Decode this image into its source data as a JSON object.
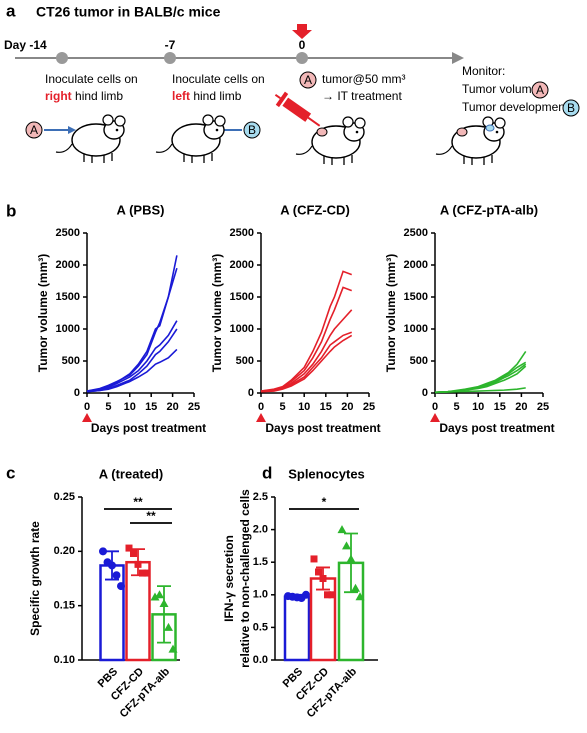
{
  "panel_labels": [
    "a",
    "b",
    "c",
    "d"
  ],
  "diagram": {
    "title": "CT26 tumor in BALB/c mice",
    "days": [
      "Day -14",
      "-7",
      "0"
    ],
    "step1": {
      "line1": "Inoculate cells on",
      "highlight": "right",
      "line2": "hind limb",
      "badge": "A"
    },
    "step2": {
      "line1": "Inoculate cells on",
      "highlight": "left",
      "line2": "hind limb",
      "badge": "B"
    },
    "step3": {
      "badge": "A",
      "line1": "tumor@50 mm³",
      "line2": "→ IT treatment"
    },
    "monitor": {
      "heading": "Monitor:",
      "line1": "Tumor volume",
      "badge1": "A",
      "line2": "Tumor development",
      "badge2": "B"
    }
  },
  "chart_data": [
    {
      "type": "line",
      "title": "A (PBS)",
      "x_label": "Days post treatment",
      "y_label": "Tumor volume (mm³)",
      "x": [
        0,
        3,
        5,
        7,
        10,
        12,
        14,
        16,
        17,
        19,
        21
      ],
      "series": [
        {
          "color": "#1a1ad6",
          "values": [
            30,
            60,
            110,
            170,
            300,
            450,
            650,
            1000,
            1050,
            1500,
            2150
          ]
        },
        {
          "color": "#1a1ad6",
          "values": [
            30,
            70,
            120,
            180,
            280,
            420,
            600,
            950,
            1100,
            1500,
            1950
          ]
        },
        {
          "color": "#1a1ad6",
          "values": [
            20,
            50,
            90,
            150,
            250,
            350,
            500,
            700,
            750,
            900,
            1130
          ]
        },
        {
          "color": "#1a1ad6",
          "values": [
            20,
            40,
            70,
            120,
            200,
            300,
            420,
            600,
            650,
            800,
            1000
          ]
        },
        {
          "color": "#1a1ad6",
          "values": [
            20,
            40,
            60,
            100,
            180,
            250,
            330,
            450,
            480,
            550,
            680
          ]
        }
      ],
      "xlim": [
        0,
        25
      ],
      "xticks": [
        0,
        5,
        10,
        15,
        20,
        25
      ],
      "ylim": [
        0,
        2500
      ],
      "yticks": [
        0,
        500,
        1000,
        1500,
        2000,
        2500
      ]
    },
    {
      "type": "line",
      "title": "A (CFZ-CD)",
      "x_label": "Days post treatment",
      "y_label": "Tumor volume (mm³)",
      "x": [
        0,
        3,
        5,
        7,
        10,
        12,
        14,
        16,
        17,
        19,
        21
      ],
      "series": [
        {
          "color": "#e4202a",
          "values": [
            30,
            60,
            100,
            200,
            400,
            650,
            950,
            1350,
            1500,
            1900,
            1850
          ]
        },
        {
          "color": "#e4202a",
          "values": [
            30,
            50,
            90,
            180,
            350,
            550,
            800,
            1150,
            1300,
            1650,
            1600
          ]
        },
        {
          "color": "#e4202a",
          "values": [
            20,
            40,
            80,
            150,
            300,
            450,
            650,
            900,
            1000,
            1150,
            1300
          ]
        },
        {
          "color": "#e4202a",
          "values": [
            20,
            40,
            70,
            130,
            250,
            400,
            550,
            750,
            800,
            900,
            950
          ]
        },
        {
          "color": "#e4202a",
          "values": [
            20,
            30,
            60,
            110,
            220,
            350,
            500,
            650,
            720,
            820,
            900
          ]
        }
      ],
      "xlim": [
        0,
        25
      ],
      "xticks": [
        0,
        5,
        10,
        15,
        20,
        25
      ],
      "ylim": [
        0,
        2500
      ],
      "yticks": [
        0,
        500,
        1000,
        1500,
        2000,
        2500
      ]
    },
    {
      "type": "line",
      "title": "A (CFZ-pTA-alb)",
      "x_label": "Days post treatment",
      "y_label": "Tumor volume (mm³)",
      "x": [
        0,
        3,
        5,
        7,
        10,
        12,
        14,
        16,
        17,
        19,
        21
      ],
      "series": [
        {
          "color": "#2db52d",
          "values": [
            10,
            20,
            40,
            60,
            100,
            150,
            200,
            280,
            320,
            450,
            650
          ]
        },
        {
          "color": "#2db52d",
          "values": [
            10,
            20,
            35,
            55,
            90,
            140,
            190,
            260,
            300,
            400,
            480
          ]
        },
        {
          "color": "#2db52d",
          "values": [
            10,
            20,
            30,
            50,
            80,
            120,
            170,
            240,
            270,
            350,
            450
          ]
        },
        {
          "color": "#2db52d",
          "values": [
            10,
            20,
            30,
            45,
            70,
            100,
            150,
            200,
            230,
            300,
            420
          ]
        },
        {
          "color": "#2db52d",
          "values": [
            10,
            15,
            20,
            25,
            30,
            35,
            40,
            45,
            50,
            60,
            80
          ]
        }
      ],
      "xlim": [
        0,
        25
      ],
      "xticks": [
        0,
        5,
        10,
        15,
        20,
        25
      ],
      "ylim": [
        0,
        2500
      ],
      "yticks": [
        0,
        500,
        1000,
        1500,
        2000,
        2500
      ]
    },
    {
      "type": "bar",
      "title": "A (treated)",
      "y_label": [
        "Specific growth rate"
      ],
      "categories": [
        "PBS",
        "CFZ-CD",
        "CFZ-pTA-alb"
      ],
      "values": [
        0.187,
        0.19,
        0.142
      ],
      "errors": [
        0.013,
        0.012,
        0.026
      ],
      "points": [
        [
          0.2,
          0.19,
          0.187,
          0.178,
          0.168
        ],
        [
          0.203,
          0.198,
          0.188,
          0.18,
          0.18
        ],
        [
          0.158,
          0.16,
          0.152,
          0.13,
          0.11
        ]
      ],
      "colors": [
        "#1a1ad6",
        "#e4202a",
        "#2db52d"
      ],
      "markers": [
        "circle",
        "square",
        "triangle"
      ],
      "significance": [
        {
          "from": 0,
          "to": 2,
          "label": "**"
        },
        {
          "from": 1,
          "to": 2,
          "label": "**"
        }
      ],
      "ylim": [
        0.1,
        0.25
      ],
      "yticks": [
        {
          "value": 0.1,
          "label": "0.10"
        },
        {
          "value": 0.15,
          "label": "0.15"
        },
        {
          "value": 0.2,
          "label": "0.20"
        },
        {
          "value": 0.25,
          "label": "0.25"
        }
      ]
    },
    {
      "type": "bar",
      "title": "Splenocytes",
      "y_label": [
        "IFN-γ secretion",
        "relative to non-challenged cells"
      ],
      "categories": [
        "PBS",
        "CFZ-CD",
        "CFZ-pTA-alb"
      ],
      "values": [
        0.97,
        1.25,
        1.49
      ],
      "errors": [
        0.03,
        0.17,
        0.45
      ],
      "points": [
        [
          0.98,
          0.97,
          0.96,
          0.95,
          1.0
        ],
        [
          1.55,
          1.35,
          1.25,
          1.0,
          1.0
        ],
        [
          2.0,
          1.75,
          1.55,
          1.1,
          0.97
        ]
      ],
      "colors": [
        "#1a1ad6",
        "#e4202a",
        "#2db52d"
      ],
      "markers": [
        "circle",
        "square",
        "triangle"
      ],
      "significance": [
        {
          "from": 0,
          "to": 2,
          "label": "*"
        }
      ],
      "ylim": [
        0,
        2.5
      ],
      "yticks": [
        {
          "value": 0,
          "label": "0.0"
        },
        {
          "value": 0.5,
          "label": "0.5"
        },
        {
          "value": 1,
          "label": "1.0"
        },
        {
          "value": 1.5,
          "label": "1.5"
        },
        {
          "value": 2,
          "label": "2.0"
        },
        {
          "value": 2.5,
          "label": "2.5"
        }
      ]
    }
  ]
}
